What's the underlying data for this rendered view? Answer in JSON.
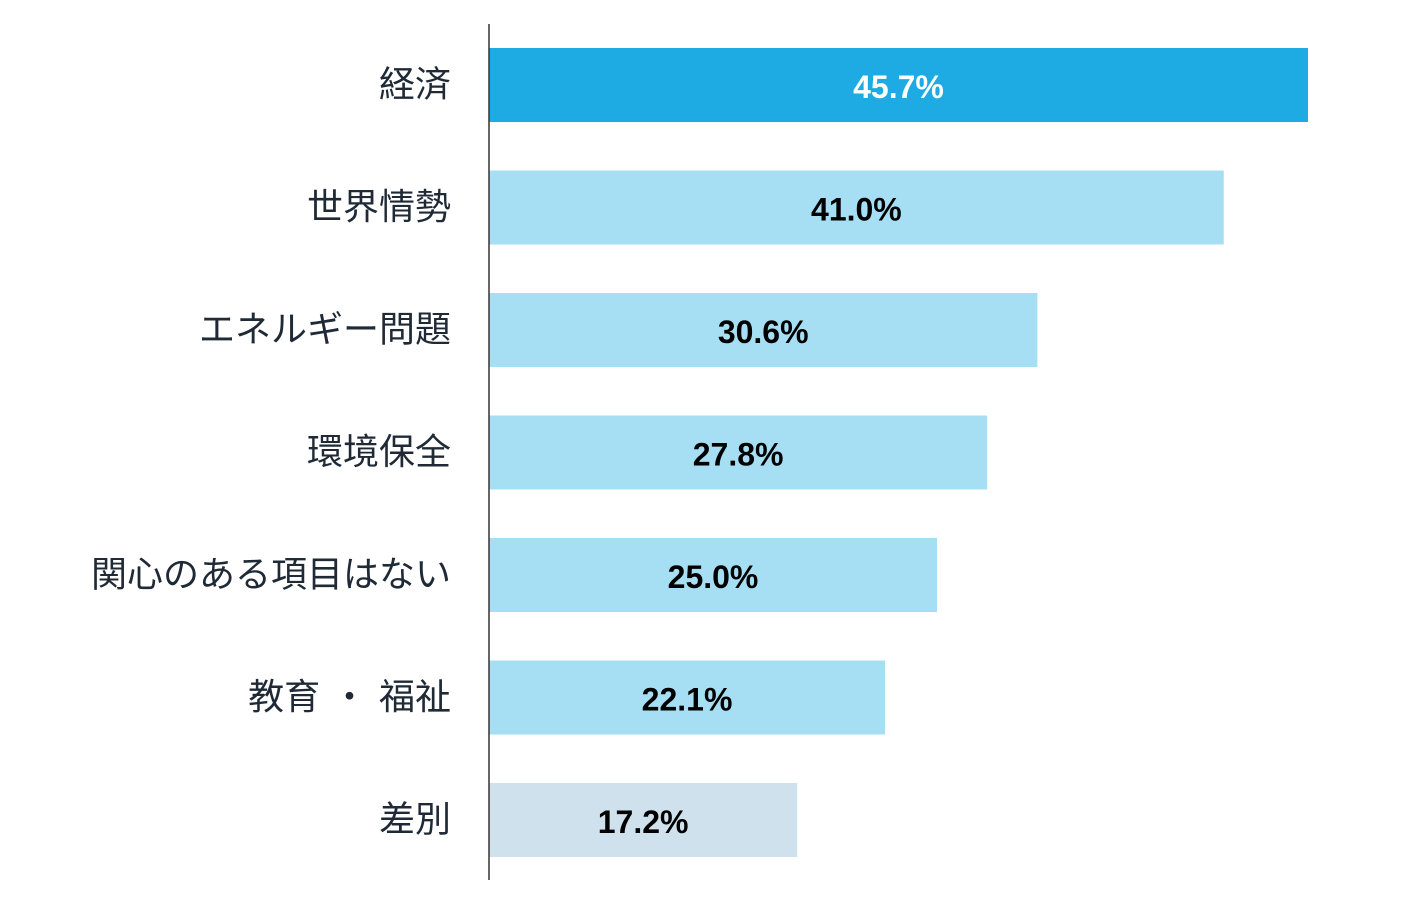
{
  "chart_data": {
    "type": "bar",
    "orientation": "horizontal",
    "categories": [
      "経済",
      "世界情勢",
      "エネルギー問題",
      "環境保全",
      "関心のある項目はない",
      "教育・福祉",
      "差別"
    ],
    "display_categories": [
      "経済",
      "世界情勢",
      "エネルギー問題",
      "環境保全",
      "関心のある項目はない",
      "教育 ・ 福祉",
      "差別"
    ],
    "values": [
      45.7,
      41.0,
      30.6,
      27.8,
      25.0,
      22.1,
      17.2
    ],
    "value_labels": [
      "45.7%",
      "41.0%",
      "30.6%",
      "27.8%",
      "25.0%",
      "22.1%",
      "17.2%"
    ],
    "unit": "%",
    "xlim": [
      0,
      50
    ],
    "grid": false,
    "legend": "none",
    "bar_colors": [
      "#1eaae2",
      "#a6dff4",
      "#a6dff4",
      "#a6dff4",
      "#a6dff4",
      "#a6dff4",
      "#cfe1ec"
    ],
    "value_label_colors": [
      "#ffffff",
      "#000000",
      "#000000",
      "#000000",
      "#000000",
      "#000000",
      "#000000"
    ],
    "category_label_color": "#1f2a36",
    "axis_color": "#333333"
  }
}
